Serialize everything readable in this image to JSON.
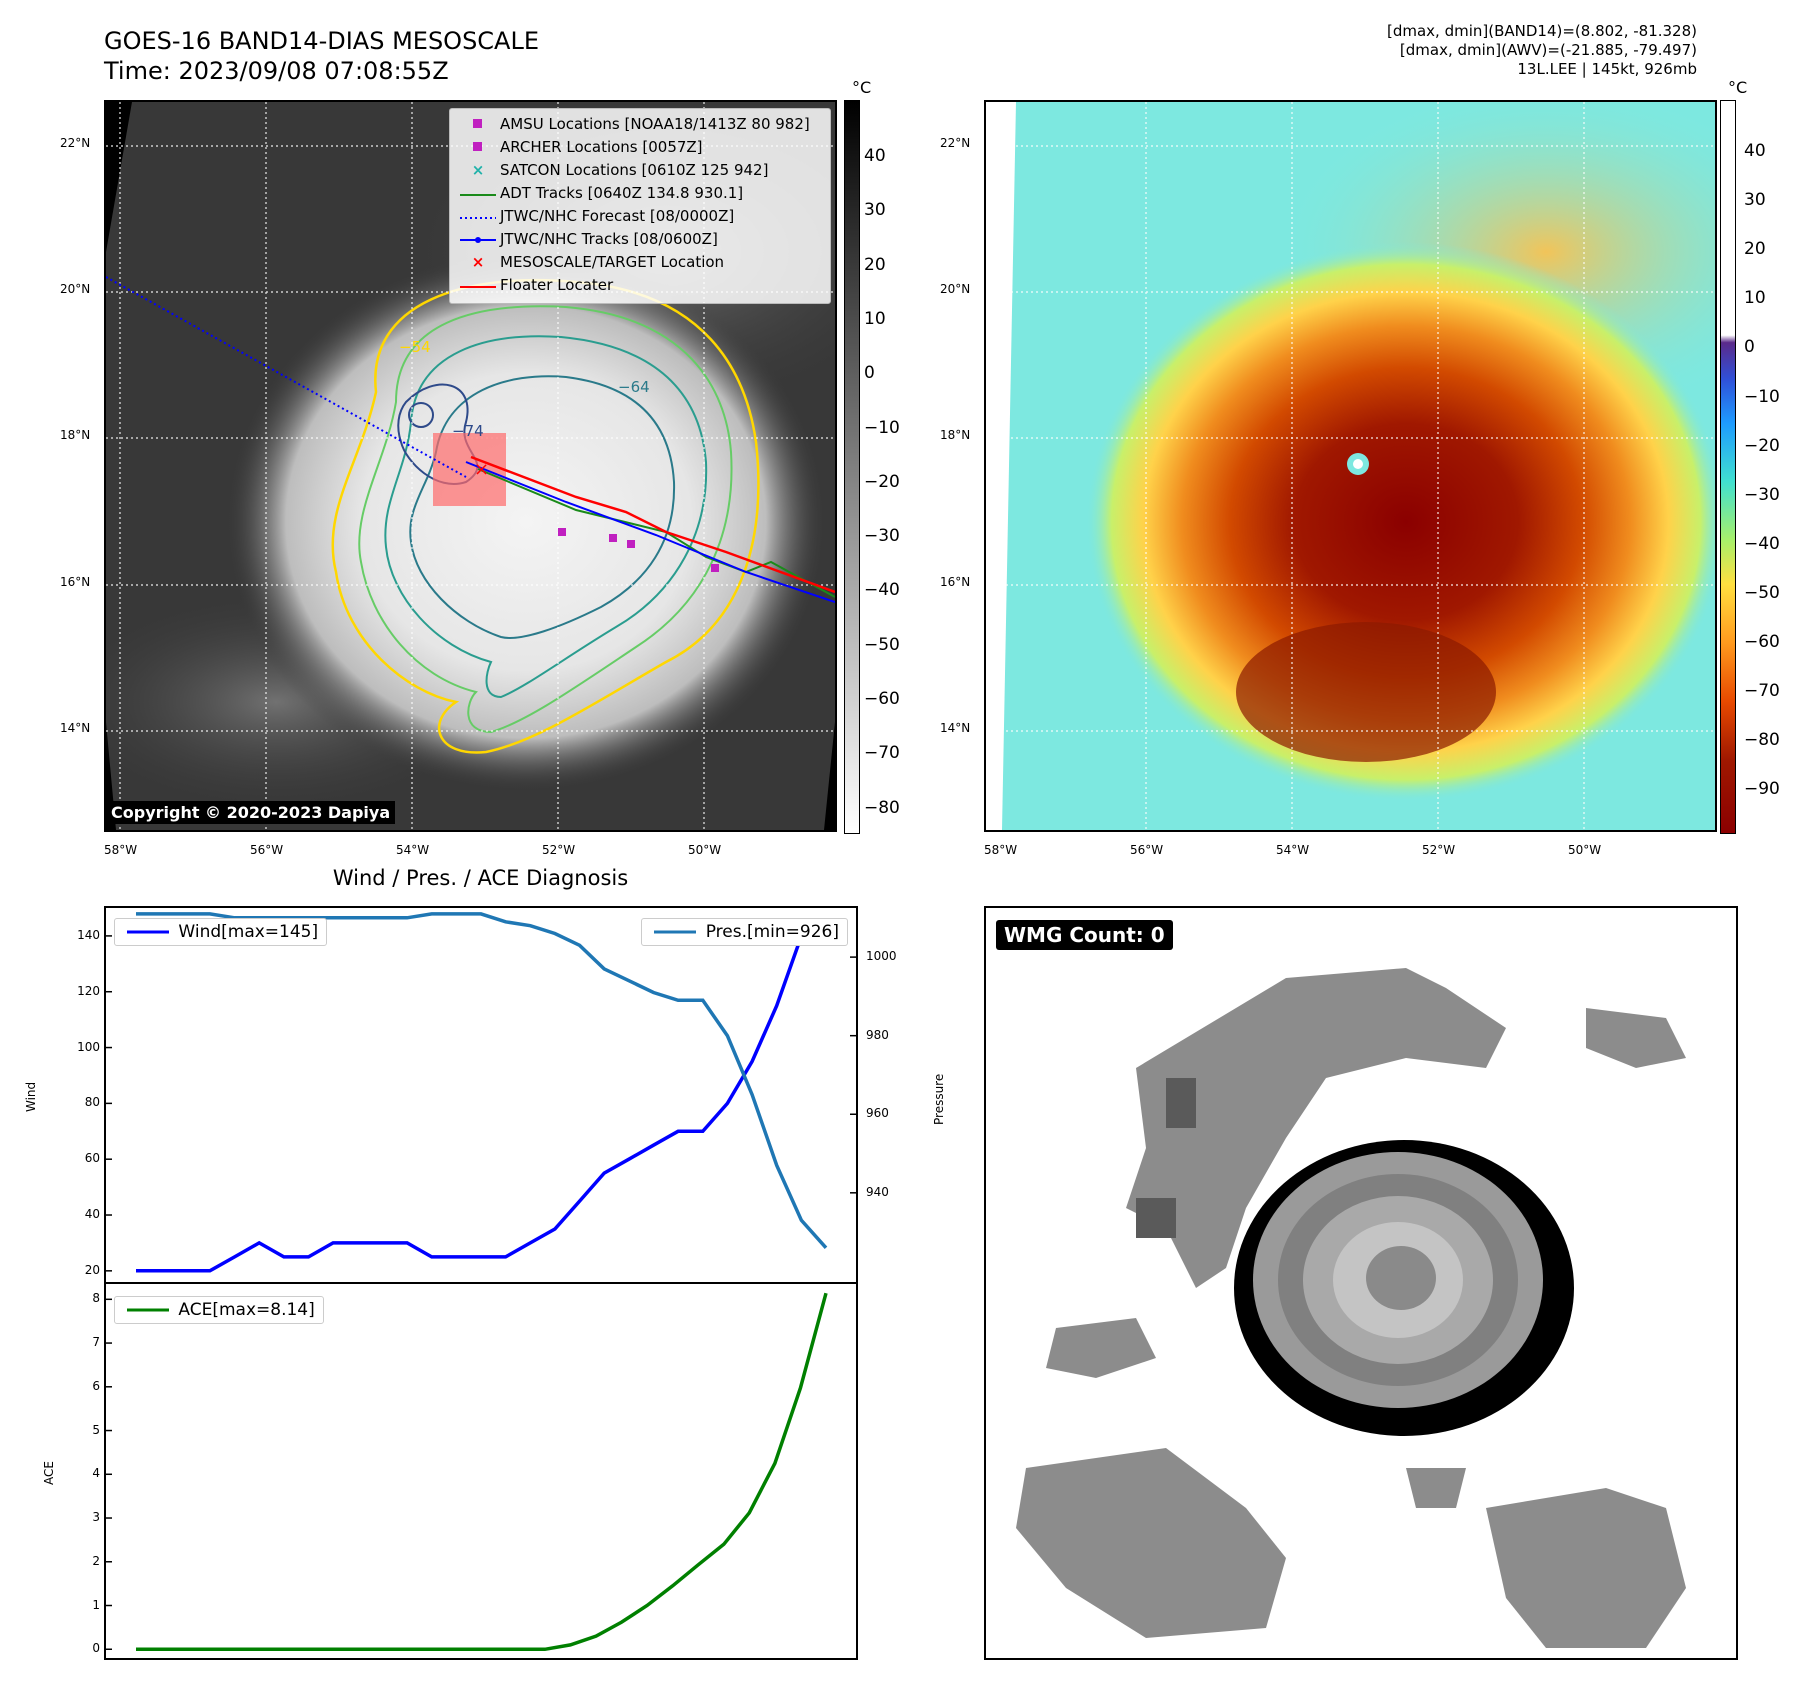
{
  "header": {
    "title_line1": "GOES-16 BAND14-DIAS MESOSCALE",
    "title_line2": "Time: 2023/09/08 07:08:55Z",
    "info_line1": "[dmax, dmin](BAND14)=(8.802, -81.328)",
    "info_line2": "[dmax, dmin](AWV)=(-21.885, -79.497)",
    "info_line3": "13L.LEE | 145kt, 926mb"
  },
  "map_axes": {
    "lat_labels": [
      "22°N",
      "20°N",
      "18°N",
      "16°N",
      "14°N"
    ],
    "lon_labels": [
      "58°W",
      "56°W",
      "54°W",
      "52°W",
      "50°W"
    ]
  },
  "colorbar_gray": {
    "unit": "°C",
    "ticks": [
      "40",
      "30",
      "20",
      "10",
      "0",
      "−10",
      "−20",
      "−30",
      "−40",
      "−50",
      "−60",
      "−70",
      "−80"
    ]
  },
  "colorbar_color": {
    "unit": "°C",
    "ticks": [
      "40",
      "30",
      "20",
      "10",
      "0",
      "−10",
      "−20",
      "−30",
      "−40",
      "−50",
      "−60",
      "−70",
      "−80",
      "−90"
    ]
  },
  "legend": {
    "items": [
      {
        "label": "AMSU Locations [NOAA18/1413Z 80 982]",
        "symbol": "square",
        "color": "#c020c0"
      },
      {
        "label": "ARCHER Locations [0057Z]",
        "symbol": "square",
        "color": "#c020c0"
      },
      {
        "label": "SATCON Locations [0610Z 125 942]",
        "symbol": "x",
        "color": "#20b2aa"
      },
      {
        "label": "ADT Tracks [0640Z 134.8 930.1]",
        "symbol": "line",
        "color": "#1a8a1a"
      },
      {
        "label": "JTWC/NHC Forecast [08/0000Z]",
        "symbol": "dotted",
        "color": "#0000ff"
      },
      {
        "label": "JTWC/NHC Tracks [08/0600Z]",
        "symbol": "dotline",
        "color": "#0000ff"
      },
      {
        "label": "MESOSCALE/TARGET Location",
        "symbol": "x",
        "color": "#ff0000"
      },
      {
        "label": "Floater Locater",
        "symbol": "line",
        "color": "#ff0000"
      }
    ]
  },
  "contour_labels": [
    "−54",
    "−64",
    "−74"
  ],
  "copyright": "Copyright © 2020-2023 Dapiya",
  "diagnosis_title": "Wind / Pres. / ACE Diagnosis",
  "wmg_count": "WMG Count: 0",
  "colors": {
    "wind": "#0000ff",
    "pressure": "#1f77b4",
    "ace": "#008000"
  },
  "chart_data": [
    {
      "type": "line",
      "title": "Wind / Pres. / ACE Diagnosis",
      "ylabel": "Wind",
      "ylabel_right": "Pressure",
      "ylim": [
        16,
        150
      ],
      "ylim_right": [
        917.3,
        1012.5
      ],
      "yticks": [
        20,
        40,
        60,
        80,
        100,
        120,
        140
      ],
      "yticks_right": [
        940,
        960,
        980,
        1000
      ],
      "series": [
        {
          "name": "Wind[max=145]",
          "axis": "left",
          "values": [
            20,
            20,
            20,
            20,
            25,
            30,
            25,
            25,
            30,
            30,
            30,
            30,
            25,
            25,
            25,
            25,
            30,
            35,
            45,
            55,
            60,
            65,
            70,
            70,
            80,
            95,
            115,
            140,
            145
          ]
        },
        {
          "name": "Pres.[min=926]",
          "axis": "right",
          "values": [
            1011,
            1011,
            1011,
            1011,
            1010,
            1010,
            1010,
            1010,
            1010,
            1010,
            1010,
            1010,
            1011,
            1011,
            1011,
            1009,
            1008,
            1006,
            1003,
            997,
            994,
            991,
            989,
            989,
            980,
            965,
            947,
            933,
            926
          ]
        }
      ]
    },
    {
      "type": "line",
      "ylabel": "ACE",
      "ylim": [
        -0.2,
        8.35
      ],
      "yticks": [
        0,
        1,
        2,
        3,
        4,
        5,
        6,
        7,
        8
      ],
      "series": [
        {
          "name": "ACE[max=8.14]",
          "values": [
            0,
            0,
            0,
            0,
            0,
            0,
            0,
            0,
            0,
            0,
            0,
            0,
            0,
            0,
            0,
            0,
            0,
            0.1,
            0.3,
            0.62,
            1.0,
            1.45,
            1.93,
            2.4,
            3.12,
            4.25,
            5.97,
            8.14
          ]
        }
      ]
    }
  ]
}
